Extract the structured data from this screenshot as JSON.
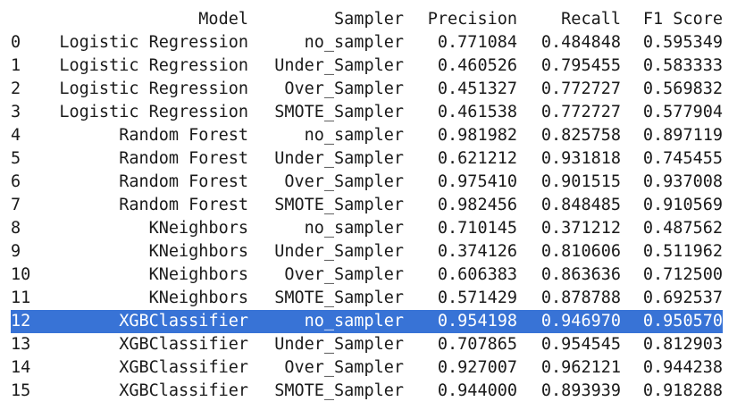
{
  "table": {
    "columns": [
      "",
      "Model",
      "Sampler",
      "Precision",
      "Recall",
      "F1 Score"
    ],
    "selected_row": 12,
    "colors": {
      "selection_background": "#3873d6",
      "selection_text": "#ffffff",
      "text": "#1a1a1a",
      "background": "#ffffff"
    },
    "rows": [
      {
        "index": "0",
        "model": "Logistic Regression",
        "sampler": "no_sampler",
        "precision": "0.771084",
        "recall": "0.484848",
        "f1": "0.595349"
      },
      {
        "index": "1",
        "model": "Logistic Regression",
        "sampler": "Under_Sampler",
        "precision": "0.460526",
        "recall": "0.795455",
        "f1": "0.583333"
      },
      {
        "index": "2",
        "model": "Logistic Regression",
        "sampler": "Over_Sampler",
        "precision": "0.451327",
        "recall": "0.772727",
        "f1": "0.569832"
      },
      {
        "index": "3",
        "model": "Logistic Regression",
        "sampler": "SMOTE_Sampler",
        "precision": "0.461538",
        "recall": "0.772727",
        "f1": "0.577904"
      },
      {
        "index": "4",
        "model": "Random Forest",
        "sampler": "no_sampler",
        "precision": "0.981982",
        "recall": "0.825758",
        "f1": "0.897119"
      },
      {
        "index": "5",
        "model": "Random Forest",
        "sampler": "Under_Sampler",
        "precision": "0.621212",
        "recall": "0.931818",
        "f1": "0.745455"
      },
      {
        "index": "6",
        "model": "Random Forest",
        "sampler": "Over_Sampler",
        "precision": "0.975410",
        "recall": "0.901515",
        "f1": "0.937008"
      },
      {
        "index": "7",
        "model": "Random Forest",
        "sampler": "SMOTE_Sampler",
        "precision": "0.982456",
        "recall": "0.848485",
        "f1": "0.910569"
      },
      {
        "index": "8",
        "model": "KNeighbors",
        "sampler": "no_sampler",
        "precision": "0.710145",
        "recall": "0.371212",
        "f1": "0.487562"
      },
      {
        "index": "9",
        "model": "KNeighbors",
        "sampler": "Under_Sampler",
        "precision": "0.374126",
        "recall": "0.810606",
        "f1": "0.511962"
      },
      {
        "index": "10",
        "model": "KNeighbors",
        "sampler": "Over_Sampler",
        "precision": "0.606383",
        "recall": "0.863636",
        "f1": "0.712500"
      },
      {
        "index": "11",
        "model": "KNeighbors",
        "sampler": "SMOTE_Sampler",
        "precision": "0.571429",
        "recall": "0.878788",
        "f1": "0.692537"
      },
      {
        "index": "12",
        "model": "XGBClassifier",
        "sampler": "no_sampler",
        "precision": "0.954198",
        "recall": "0.946970",
        "f1": "0.950570"
      },
      {
        "index": "13",
        "model": "XGBClassifier",
        "sampler": "Under_Sampler",
        "precision": "0.707865",
        "recall": "0.954545",
        "f1": "0.812903"
      },
      {
        "index": "14",
        "model": "XGBClassifier",
        "sampler": "Over_Sampler",
        "precision": "0.927007",
        "recall": "0.962121",
        "f1": "0.944238"
      },
      {
        "index": "15",
        "model": "XGBClassifier",
        "sampler": "SMOTE_Sampler",
        "precision": "0.944000",
        "recall": "0.893939",
        "f1": "0.918288"
      }
    ]
  }
}
